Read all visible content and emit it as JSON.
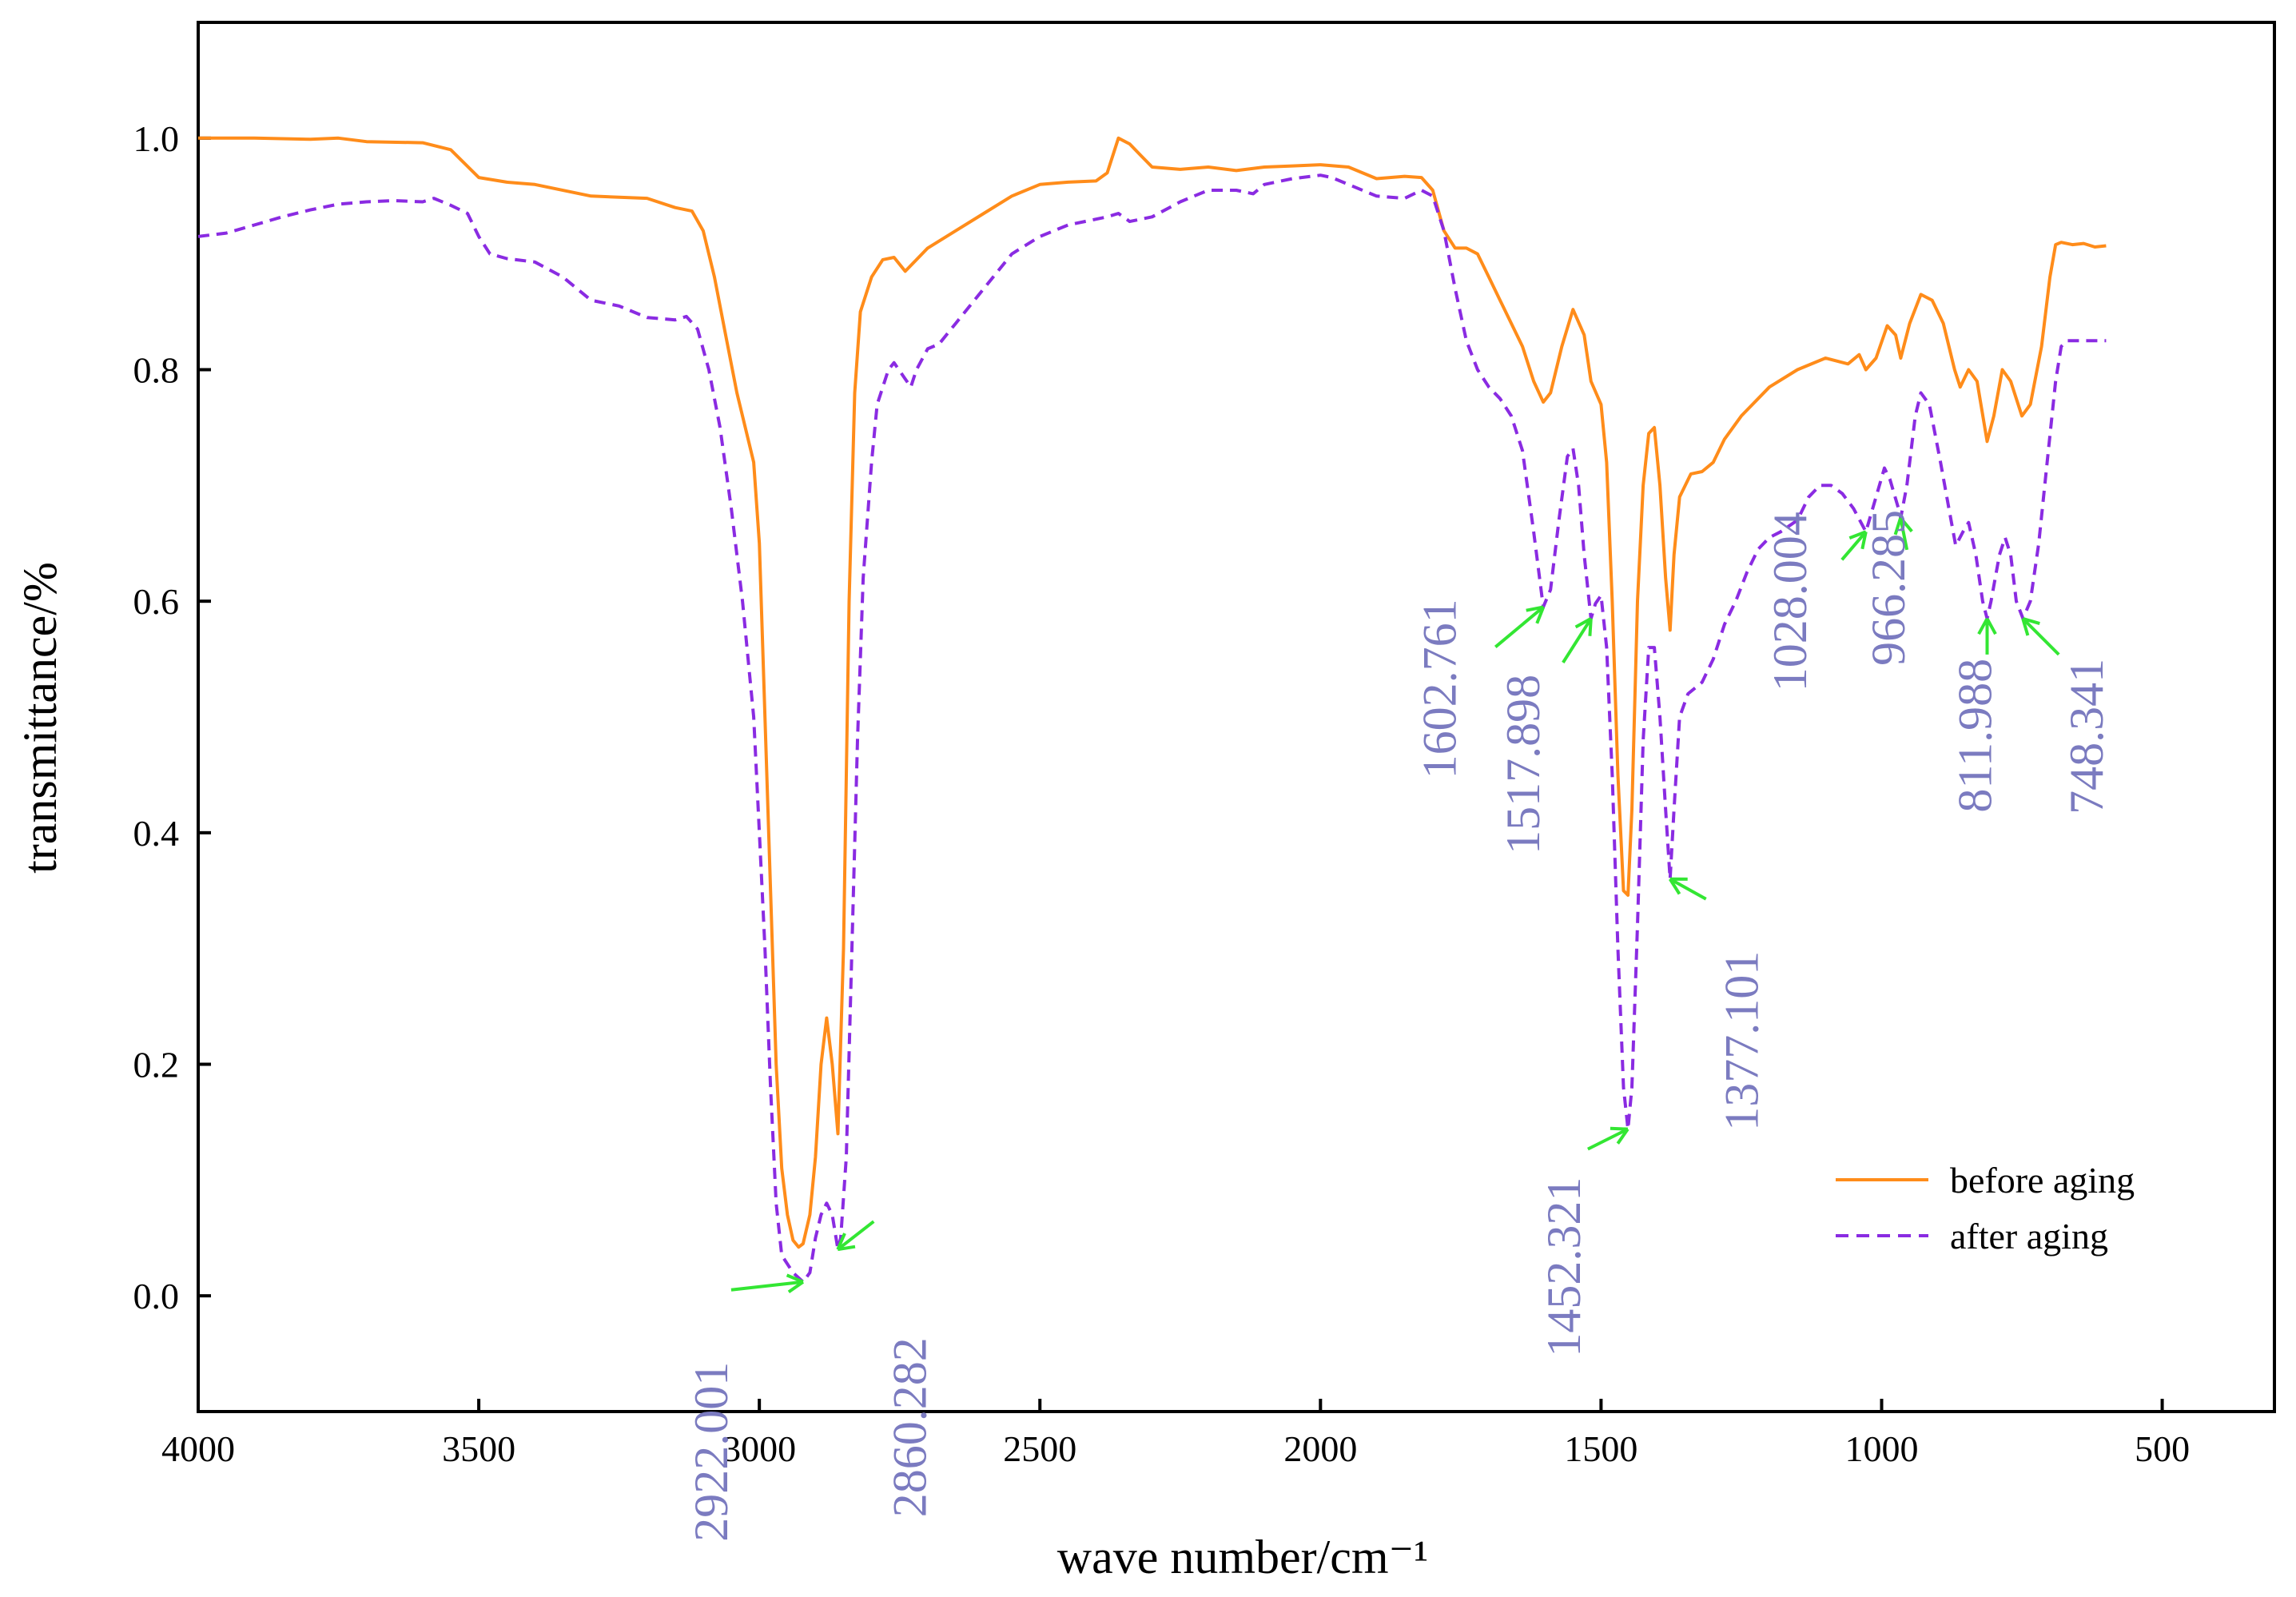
{
  "chart_data": {
    "type": "line",
    "title": "",
    "xlabel": "wave number/cm⁻¹",
    "ylabel": "transmittance/%",
    "xlim": [
      4000,
      300
    ],
    "ylim": [
      -0.1,
      1.1
    ],
    "x_ticks": [
      4000,
      3500,
      3000,
      2500,
      2000,
      1500,
      1000,
      500
    ],
    "x_tick_labels": [
      "4000",
      "3500",
      "3000",
      "2500",
      "2000",
      "1500",
      "1000",
      "500"
    ],
    "y_ticks": [
      0.0,
      0.2,
      0.4,
      0.6,
      0.8,
      1.0
    ],
    "y_tick_labels": [
      "0.0",
      "0.2",
      "0.4",
      "0.6",
      "0.8",
      "1.0"
    ],
    "grid": false,
    "legend_position": "bottom-right",
    "colors": {
      "before": "#FF8C1A",
      "after": "#8A2BE2",
      "label": "#7B7BC0",
      "arrow": "#33E633"
    },
    "series": [
      {
        "name": "before aging",
        "style": "solid",
        "points": [
          [
            4000,
            1.0
          ],
          [
            3900,
            1.0
          ],
          [
            3800,
            0.999
          ],
          [
            3750,
            1.0
          ],
          [
            3700,
            0.997
          ],
          [
            3600,
            0.996
          ],
          [
            3550,
            0.99
          ],
          [
            3500,
            0.966
          ],
          [
            3450,
            0.962
          ],
          [
            3400,
            0.96
          ],
          [
            3300,
            0.95
          ],
          [
            3200,
            0.948
          ],
          [
            3150,
            0.94
          ],
          [
            3120,
            0.937
          ],
          [
            3100,
            0.92
          ],
          [
            3080,
            0.88
          ],
          [
            3060,
            0.83
          ],
          [
            3040,
            0.78
          ],
          [
            3020,
            0.74
          ],
          [
            3010,
            0.72
          ],
          [
            3000,
            0.65
          ],
          [
            2990,
            0.5
          ],
          [
            2980,
            0.35
          ],
          [
            2970,
            0.2
          ],
          [
            2960,
            0.11
          ],
          [
            2950,
            0.07
          ],
          [
            2940,
            0.048
          ],
          [
            2930,
            0.042
          ],
          [
            2922,
            0.045
          ],
          [
            2910,
            0.07
          ],
          [
            2900,
            0.12
          ],
          [
            2890,
            0.2
          ],
          [
            2880,
            0.24
          ],
          [
            2870,
            0.2
          ],
          [
            2860,
            0.14
          ],
          [
            2850,
            0.3
          ],
          [
            2840,
            0.6
          ],
          [
            2830,
            0.78
          ],
          [
            2820,
            0.85
          ],
          [
            2800,
            0.88
          ],
          [
            2780,
            0.895
          ],
          [
            2760,
            0.897
          ],
          [
            2740,
            0.885
          ],
          [
            2720,
            0.895
          ],
          [
            2700,
            0.905
          ],
          [
            2650,
            0.92
          ],
          [
            2600,
            0.935
          ],
          [
            2550,
            0.95
          ],
          [
            2500,
            0.96
          ],
          [
            2450,
            0.962
          ],
          [
            2400,
            0.963
          ],
          [
            2380,
            0.97
          ],
          [
            2360,
            1.0
          ],
          [
            2340,
            0.995
          ],
          [
            2320,
            0.985
          ],
          [
            2300,
            0.975
          ],
          [
            2250,
            0.973
          ],
          [
            2200,
            0.975
          ],
          [
            2150,
            0.972
          ],
          [
            2100,
            0.975
          ],
          [
            2050,
            0.976
          ],
          [
            2000,
            0.977
          ],
          [
            1950,
            0.975
          ],
          [
            1900,
            0.965
          ],
          [
            1850,
            0.967
          ],
          [
            1820,
            0.966
          ],
          [
            1800,
            0.955
          ],
          [
            1780,
            0.92
          ],
          [
            1760,
            0.905
          ],
          [
            1740,
            0.905
          ],
          [
            1720,
            0.9
          ],
          [
            1700,
            0.88
          ],
          [
            1680,
            0.86
          ],
          [
            1660,
            0.84
          ],
          [
            1640,
            0.82
          ],
          [
            1620,
            0.79
          ],
          [
            1603,
            0.772
          ],
          [
            1590,
            0.78
          ],
          [
            1570,
            0.82
          ],
          [
            1550,
            0.852
          ],
          [
            1530,
            0.83
          ],
          [
            1518,
            0.79
          ],
          [
            1500,
            0.77
          ],
          [
            1490,
            0.72
          ],
          [
            1480,
            0.6
          ],
          [
            1470,
            0.45
          ],
          [
            1460,
            0.35
          ],
          [
            1452,
            0.346
          ],
          [
            1445,
            0.42
          ],
          [
            1435,
            0.6
          ],
          [
            1425,
            0.7
          ],
          [
            1415,
            0.745
          ],
          [
            1405,
            0.75
          ],
          [
            1395,
            0.7
          ],
          [
            1385,
            0.62
          ],
          [
            1377,
            0.575
          ],
          [
            1370,
            0.64
          ],
          [
            1360,
            0.69
          ],
          [
            1340,
            0.71
          ],
          [
            1320,
            0.712
          ],
          [
            1300,
            0.72
          ],
          [
            1280,
            0.74
          ],
          [
            1250,
            0.76
          ],
          [
            1200,
            0.785
          ],
          [
            1150,
            0.8
          ],
          [
            1100,
            0.81
          ],
          [
            1060,
            0.805
          ],
          [
            1040,
            0.813
          ],
          [
            1028,
            0.8
          ],
          [
            1010,
            0.81
          ],
          [
            990,
            0.838
          ],
          [
            975,
            0.83
          ],
          [
            966,
            0.81
          ],
          [
            950,
            0.84
          ],
          [
            930,
            0.865
          ],
          [
            910,
            0.86
          ],
          [
            890,
            0.84
          ],
          [
            870,
            0.8
          ],
          [
            860,
            0.785
          ],
          [
            845,
            0.8
          ],
          [
            830,
            0.79
          ],
          [
            812,
            0.738
          ],
          [
            800,
            0.76
          ],
          [
            785,
            0.8
          ],
          [
            770,
            0.79
          ],
          [
            750,
            0.76
          ],
          [
            735,
            0.77
          ],
          [
            715,
            0.82
          ],
          [
            700,
            0.88
          ],
          [
            690,
            0.908
          ],
          [
            680,
            0.91
          ],
          [
            660,
            0.908
          ],
          [
            640,
            0.909
          ],
          [
            620,
            0.906
          ],
          [
            600,
            0.907
          ]
        ]
      },
      {
        "name": "after aging",
        "style": "dashed",
        "points": [
          [
            4000,
            0.915
          ],
          [
            3950,
            0.918
          ],
          [
            3900,
            0.925
          ],
          [
            3850,
            0.932
          ],
          [
            3800,
            0.938
          ],
          [
            3750,
            0.943
          ],
          [
            3700,
            0.945
          ],
          [
            3650,
            0.946
          ],
          [
            3600,
            0.945
          ],
          [
            3580,
            0.948
          ],
          [
            3550,
            0.942
          ],
          [
            3520,
            0.935
          ],
          [
            3500,
            0.915
          ],
          [
            3480,
            0.9
          ],
          [
            3450,
            0.896
          ],
          [
            3400,
            0.893
          ],
          [
            3350,
            0.88
          ],
          [
            3300,
            0.86
          ],
          [
            3250,
            0.855
          ],
          [
            3200,
            0.845
          ],
          [
            3150,
            0.843
          ],
          [
            3130,
            0.846
          ],
          [
            3110,
            0.835
          ],
          [
            3090,
            0.8
          ],
          [
            3070,
            0.75
          ],
          [
            3050,
            0.68
          ],
          [
            3030,
            0.6
          ],
          [
            3010,
            0.5
          ],
          [
            3000,
            0.4
          ],
          [
            2990,
            0.3
          ],
          [
            2980,
            0.18
          ],
          [
            2970,
            0.08
          ],
          [
            2960,
            0.035
          ],
          [
            2940,
            0.02
          ],
          [
            2922,
            0.012
          ],
          [
            2910,
            0.02
          ],
          [
            2900,
            0.05
          ],
          [
            2890,
            0.07
          ],
          [
            2880,
            0.08
          ],
          [
            2870,
            0.07
          ],
          [
            2860,
            0.04
          ],
          [
            2855,
            0.05
          ],
          [
            2845,
            0.12
          ],
          [
            2835,
            0.3
          ],
          [
            2825,
            0.48
          ],
          [
            2815,
            0.62
          ],
          [
            2800,
            0.72
          ],
          [
            2790,
            0.77
          ],
          [
            2770,
            0.8
          ],
          [
            2760,
            0.806
          ],
          [
            2740,
            0.792
          ],
          [
            2730,
            0.785
          ],
          [
            2720,
            0.8
          ],
          [
            2700,
            0.818
          ],
          [
            2680,
            0.822
          ],
          [
            2650,
            0.84
          ],
          [
            2600,
            0.87
          ],
          [
            2550,
            0.9
          ],
          [
            2500,
            0.915
          ],
          [
            2450,
            0.925
          ],
          [
            2400,
            0.93
          ],
          [
            2380,
            0.932
          ],
          [
            2360,
            0.935
          ],
          [
            2340,
            0.928
          ],
          [
            2300,
            0.932
          ],
          [
            2250,
            0.945
          ],
          [
            2200,
            0.955
          ],
          [
            2150,
            0.955
          ],
          [
            2120,
            0.952
          ],
          [
            2100,
            0.96
          ],
          [
            2050,
            0.965
          ],
          [
            2000,
            0.968
          ],
          [
            1980,
            0.966
          ],
          [
            1950,
            0.96
          ],
          [
            1900,
            0.95
          ],
          [
            1850,
            0.948
          ],
          [
            1820,
            0.955
          ],
          [
            1800,
            0.95
          ],
          [
            1780,
            0.92
          ],
          [
            1760,
            0.87
          ],
          [
            1740,
            0.825
          ],
          [
            1720,
            0.8
          ],
          [
            1700,
            0.785
          ],
          [
            1680,
            0.775
          ],
          [
            1660,
            0.76
          ],
          [
            1640,
            0.73
          ],
          [
            1620,
            0.66
          ],
          [
            1603,
            0.595
          ],
          [
            1590,
            0.61
          ],
          [
            1575,
            0.67
          ],
          [
            1560,
            0.725
          ],
          [
            1550,
            0.732
          ],
          [
            1540,
            0.7
          ],
          [
            1530,
            0.64
          ],
          [
            1518,
            0.585
          ],
          [
            1510,
            0.598
          ],
          [
            1500,
            0.605
          ],
          [
            1490,
            0.56
          ],
          [
            1480,
            0.45
          ],
          [
            1470,
            0.3
          ],
          [
            1460,
            0.18
          ],
          [
            1452,
            0.144
          ],
          [
            1445,
            0.18
          ],
          [
            1435,
            0.32
          ],
          [
            1425,
            0.48
          ],
          [
            1415,
            0.56
          ],
          [
            1405,
            0.56
          ],
          [
            1395,
            0.5
          ],
          [
            1385,
            0.42
          ],
          [
            1377,
            0.36
          ],
          [
            1370,
            0.42
          ],
          [
            1360,
            0.5
          ],
          [
            1345,
            0.52
          ],
          [
            1320,
            0.53
          ],
          [
            1300,
            0.55
          ],
          [
            1280,
            0.58
          ],
          [
            1260,
            0.6
          ],
          [
            1240,
            0.625
          ],
          [
            1220,
            0.645
          ],
          [
            1200,
            0.655
          ],
          [
            1180,
            0.66
          ],
          [
            1150,
            0.67
          ],
          [
            1130,
            0.69
          ],
          [
            1110,
            0.7
          ],
          [
            1090,
            0.7
          ],
          [
            1070,
            0.693
          ],
          [
            1050,
            0.68
          ],
          [
            1028,
            0.66
          ],
          [
            1010,
            0.69
          ],
          [
            995,
            0.715
          ],
          [
            985,
            0.705
          ],
          [
            970,
            0.68
          ],
          [
            966,
            0.672
          ],
          [
            955,
            0.7
          ],
          [
            940,
            0.76
          ],
          [
            930,
            0.78
          ],
          [
            915,
            0.77
          ],
          [
            895,
            0.72
          ],
          [
            880,
            0.68
          ],
          [
            868,
            0.648
          ],
          [
            855,
            0.66
          ],
          [
            845,
            0.668
          ],
          [
            832,
            0.64
          ],
          [
            820,
            0.6
          ],
          [
            812,
            0.585
          ],
          [
            805,
            0.6
          ],
          [
            790,
            0.64
          ],
          [
            780,
            0.655
          ],
          [
            770,
            0.64
          ],
          [
            760,
            0.6
          ],
          [
            748,
            0.585
          ],
          [
            735,
            0.6
          ],
          [
            720,
            0.65
          ],
          [
            705,
            0.72
          ],
          [
            690,
            0.79
          ],
          [
            680,
            0.82
          ],
          [
            670,
            0.825
          ],
          [
            640,
            0.825
          ],
          [
            600,
            0.825
          ]
        ]
      }
    ],
    "annotations": [
      {
        "text": "2922.001",
        "x": 2922.001,
        "y": 0.012
      },
      {
        "text": "2860.282",
        "x": 2860.282,
        "y": 0.04
      },
      {
        "text": "1602.761",
        "x": 1602.761,
        "y": 0.595
      },
      {
        "text": "1517.898",
        "x": 1517.898,
        "y": 0.585
      },
      {
        "text": "1452.321",
        "x": 1452.321,
        "y": 0.144
      },
      {
        "text": "1377.101",
        "x": 1377.101,
        "y": 0.36
      },
      {
        "text": "1028.004",
        "x": 1028.004,
        "y": 0.66
      },
      {
        "text": "966.285",
        "x": 966.285,
        "y": 0.672
      },
      {
        "text": "811.988",
        "x": 811.988,
        "y": 0.585
      },
      {
        "text": "748.341",
        "x": 748.341,
        "y": 0.585
      }
    ]
  }
}
